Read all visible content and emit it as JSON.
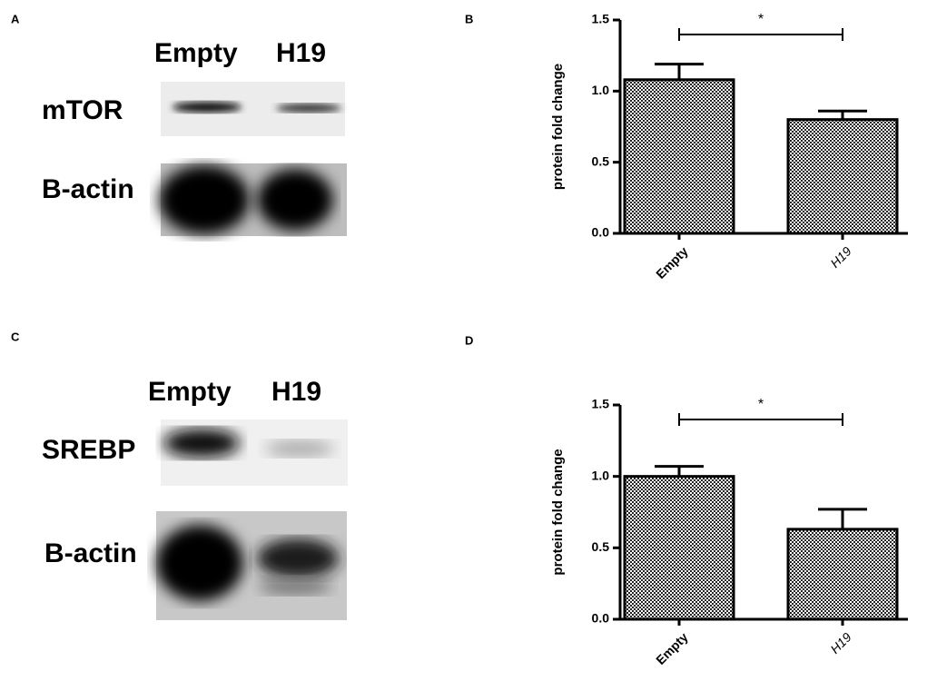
{
  "panel_labels": [
    "A",
    "B",
    "C",
    "D"
  ],
  "blots": [
    {
      "lanes": [
        "Empty",
        "H19"
      ],
      "rows": [
        "mTOR",
        "B-actin"
      ]
    },
    {
      "lanes": [
        "Empty",
        "H19"
      ],
      "rows": [
        "SREBP",
        "B-actin"
      ]
    }
  ],
  "chart_data": [
    {
      "type": "bar",
      "ylabel": "protein fold change",
      "categories": [
        "Empty",
        "H19"
      ],
      "values": [
        1.08,
        0.8
      ],
      "errors": [
        0.11,
        0.06
      ],
      "significance": "*",
      "ylim": [
        0,
        1.5
      ],
      "yticks": [
        {
          "value": 0,
          "label": "0.0"
        },
        {
          "value": 0.5,
          "label": "0.5"
        },
        {
          "value": 1,
          "label": "1.0"
        },
        {
          "value": 1.5,
          "label": "1.5"
        }
      ]
    },
    {
      "type": "bar",
      "ylabel": "protein fold change",
      "categories": [
        "Empty",
        "H19"
      ],
      "values": [
        1.0,
        0.63
      ],
      "errors": [
        0.07,
        0.14
      ],
      "significance": "*",
      "ylim": [
        0,
        1.5
      ],
      "yticks": [
        {
          "value": 0,
          "label": "0.0"
        },
        {
          "value": 0.5,
          "label": "0.5"
        },
        {
          "value": 1,
          "label": "1.0"
        },
        {
          "value": 1.5,
          "label": "1.5"
        }
      ]
    }
  ]
}
